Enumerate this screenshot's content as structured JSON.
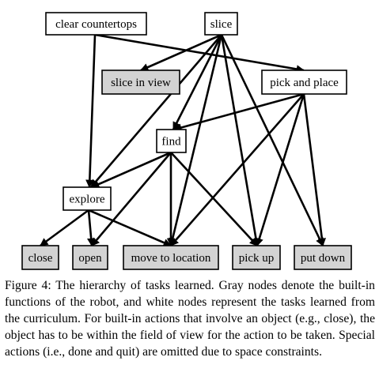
{
  "figure": {
    "nodes": [
      {
        "id": "clear",
        "label": "clear countertops",
        "builtin": false
      },
      {
        "id": "slice",
        "label": "slice",
        "builtin": false
      },
      {
        "id": "sliceview",
        "label": "slice in view",
        "builtin": true
      },
      {
        "id": "pickplace",
        "label": "pick and place",
        "builtin": false
      },
      {
        "id": "find",
        "label": "find",
        "builtin": false
      },
      {
        "id": "explore",
        "label": "explore",
        "builtin": false
      },
      {
        "id": "close",
        "label": "close",
        "builtin": true
      },
      {
        "id": "open",
        "label": "open",
        "builtin": true
      },
      {
        "id": "moveto",
        "label": "move to location",
        "builtin": true
      },
      {
        "id": "pickup",
        "label": "pick up",
        "builtin": true
      },
      {
        "id": "putdown",
        "label": "put down",
        "builtin": true
      }
    ],
    "edges": [
      [
        "clear",
        "pickplace"
      ],
      [
        "clear",
        "explore"
      ],
      [
        "slice",
        "sliceview"
      ],
      [
        "slice",
        "find"
      ],
      [
        "slice",
        "explore"
      ],
      [
        "slice",
        "moveto"
      ],
      [
        "slice",
        "pickup"
      ],
      [
        "slice",
        "putdown"
      ],
      [
        "pickplace",
        "find"
      ],
      [
        "pickplace",
        "moveto"
      ],
      [
        "pickplace",
        "pickup"
      ],
      [
        "pickplace",
        "putdown"
      ],
      [
        "find",
        "explore"
      ],
      [
        "find",
        "open"
      ],
      [
        "find",
        "moveto"
      ],
      [
        "find",
        "pickup"
      ],
      [
        "explore",
        "close"
      ],
      [
        "explore",
        "open"
      ],
      [
        "explore",
        "moveto"
      ]
    ],
    "colors": {
      "builtin_fill": "#d3d3d3",
      "learned_fill": "#ffffff"
    }
  },
  "caption": {
    "label": "Figure 4:",
    "text": "The hierarchy of tasks learned. Gray nodes denote the built-in functions of the robot, and white nodes represent the tasks learned from the curriculum. For built-in actions that involve an object (e.g., close), the object has to be within the field of view for the action to be taken. Special actions (i.e., done and quit) are omitted due to space constraints."
  }
}
